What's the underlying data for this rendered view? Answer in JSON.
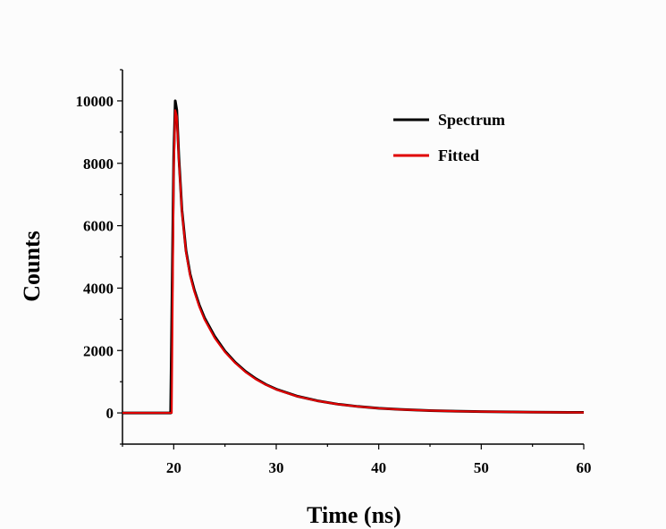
{
  "chart_data": {
    "type": "line",
    "xlabel": "Time (ns)",
    "ylabel": "Counts",
    "xlim": [
      15,
      60
    ],
    "ylim": [
      -1000,
      11000
    ],
    "xticks": [
      20,
      30,
      40,
      50,
      60
    ],
    "yticks": [
      0,
      2000,
      4000,
      6000,
      8000,
      10000
    ],
    "legend_position": "top-right",
    "series": [
      {
        "name": "Spectrum",
        "color": "#000000",
        "x": [
          15,
          19.7,
          20.0,
          20.15,
          20.3,
          20.5,
          20.8,
          21.2,
          21.6,
          22.0,
          22.5,
          23,
          24,
          25,
          26,
          27,
          28,
          29,
          30,
          32,
          34,
          36,
          38,
          40,
          42,
          45,
          48,
          50,
          55,
          60
        ],
        "y": [
          0,
          0,
          8200,
          10000,
          9700,
          8200,
          6500,
          5200,
          4450,
          3950,
          3450,
          3050,
          2450,
          1980,
          1620,
          1330,
          1100,
          910,
          760,
          540,
          390,
          280,
          205,
          150,
          112,
          75,
          52,
          42,
          25,
          15
        ]
      },
      {
        "name": "Fitted",
        "color": "#e00000",
        "x": [
          15,
          19.8,
          20.0,
          20.15,
          20.3,
          20.5,
          20.8,
          21.2,
          21.6,
          22.0,
          22.5,
          23,
          24,
          25,
          26,
          27,
          28,
          29,
          30,
          32,
          34,
          36,
          38,
          40,
          42,
          45,
          48,
          50,
          55,
          60
        ],
        "y": [
          0,
          0,
          7800,
          9700,
          9500,
          8100,
          6450,
          5150,
          4400,
          3900,
          3400,
          3000,
          2400,
          1950,
          1600,
          1310,
          1080,
          900,
          750,
          535,
          385,
          278,
          202,
          148,
          110,
          74,
          51,
          41,
          24,
          14
        ]
      }
    ]
  }
}
